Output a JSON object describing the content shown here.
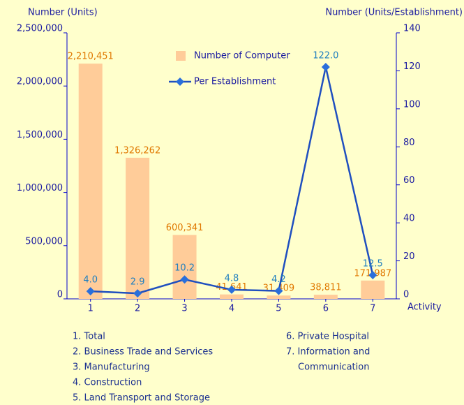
{
  "chart_data": {
    "type": "bar_line",
    "y_label": "Number (Units)",
    "y2_label": "Number (Units/Establishment)",
    "x_label": "Activity",
    "categories": [
      "1",
      "2",
      "3",
      "4",
      "5",
      "6",
      "7"
    ],
    "series": [
      {
        "name": "Number of Computer",
        "type": "bar",
        "color": "#ffcc99",
        "label_color": "#e07800",
        "values": [
          2210451,
          1326262,
          600341,
          41641,
          31409,
          38811,
          171987
        ],
        "value_labels": [
          "2,210,451",
          "1,326,262",
          "600,341",
          "41,641",
          "31,409",
          "38,811",
          "171,987"
        ]
      },
      {
        "name": "Per Establishment",
        "type": "line",
        "axis": "y2",
        "color": "#1f4fbf",
        "label_color": "#1f7fbf",
        "values": [
          4.0,
          2.9,
          10.2,
          4.8,
          4.2,
          122.0,
          12.5
        ],
        "value_labels": [
          "4.0",
          "2.9",
          "10.2",
          "4.8",
          "4.2",
          "122.0",
          "12.5"
        ]
      }
    ],
    "ylim": [
      0,
      2500000
    ],
    "yticks": [
      0,
      {
        "value": 500000,
        "label": "500,000"
      },
      {
        "value": 1000000,
        "label": "1,000,000"
      },
      {
        "value": 1500000,
        "label": "1,500,000"
      },
      {
        "value": 2000000,
        "label": "2,000,000"
      },
      {
        "value": 2500000,
        "label": "2,500,000"
      }
    ],
    "y2lim": [
      0,
      140
    ],
    "y2ticks": [
      0,
      20,
      40,
      60,
      80,
      100,
      120,
      140
    ],
    "notes": [
      "1. Total",
      "2. Business Trade and Services",
      "3. Manufacturing",
      "4. Construction",
      "5. Land Transport and Storage",
      "6. Private Hospital",
      "7. Information and",
      "Communication"
    ]
  }
}
